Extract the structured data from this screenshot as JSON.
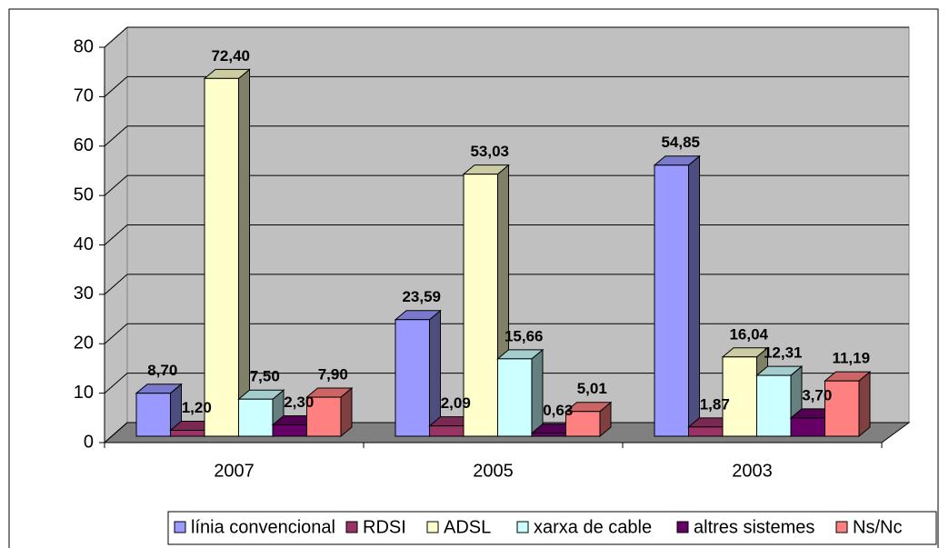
{
  "chart_data": {
    "type": "bar3d",
    "categories": [
      "2007",
      "2005",
      "2003"
    ],
    "series": [
      {
        "name": "línia convencional",
        "color": "#9999ff",
        "values": [
          8.7,
          23.59,
          54.85
        ],
        "value_labels": [
          "8,70",
          "23,59",
          "54,85"
        ]
      },
      {
        "name": "RDSI",
        "color": "#993366",
        "values": [
          1.2,
          2.09,
          1.87
        ],
        "value_labels": [
          "1,20",
          "2,09",
          "1,87"
        ]
      },
      {
        "name": "ADSL",
        "color": "#ffffcc",
        "values": [
          72.4,
          53.03,
          16.04
        ],
        "value_labels": [
          "72,40",
          "53,03",
          "16,04"
        ]
      },
      {
        "name": "xarxa de cable",
        "color": "#ccffff",
        "values": [
          7.5,
          15.66,
          12.31
        ],
        "value_labels": [
          "7,50",
          "15,66",
          "12,31"
        ]
      },
      {
        "name": "altres sistemes",
        "color": "#660066",
        "values": [
          2.3,
          0.63,
          3.7
        ],
        "value_labels": [
          "2,30",
          "0,63",
          "3,70"
        ]
      },
      {
        "name": "Ns/Nc",
        "color": "#ff8080",
        "values": [
          7.9,
          5.01,
          11.19
        ],
        "value_labels": [
          "7,90",
          "5,01",
          "11,19"
        ]
      }
    ],
    "ylim": [
      0,
      80
    ],
    "yticks": [
      0,
      10,
      20,
      30,
      40,
      50,
      60,
      70,
      80
    ],
    "grid": true,
    "legend": "bottom"
  }
}
